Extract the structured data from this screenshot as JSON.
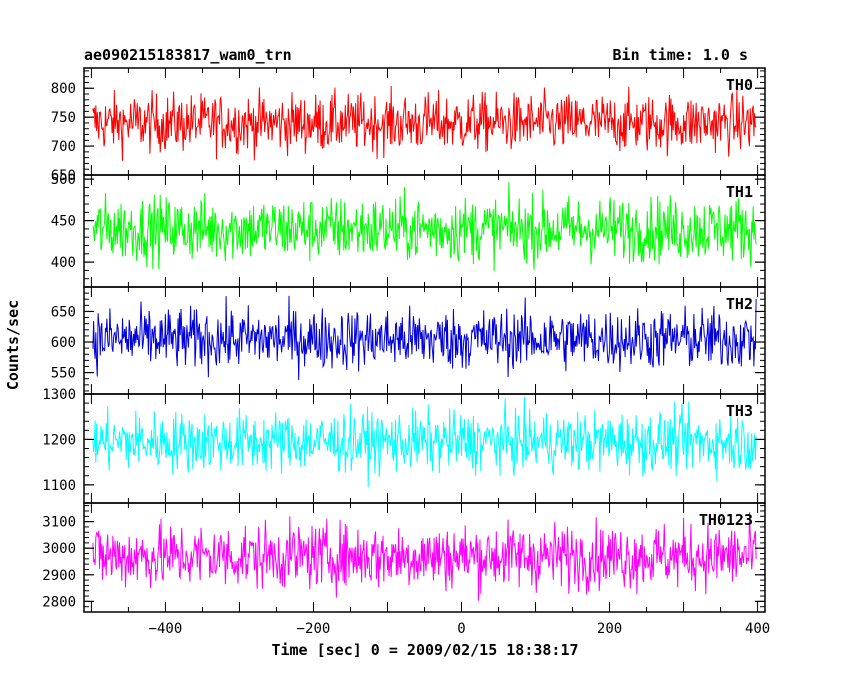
{
  "header": {
    "title_left": "ae090215183817_wam0_trn",
    "title_right": "Bin time: 1.0 s"
  },
  "axes": {
    "ylabel": "Counts/sec",
    "xlabel": "Time [sec] 0 = 2009/02/15 18:38:17"
  },
  "chart_data": {
    "type": "line",
    "xlim": [
      -510,
      410
    ],
    "x_ticks": [
      -400,
      -200,
      0,
      200,
      400
    ],
    "x_step": 1.0,
    "x_range": [
      -498,
      398
    ],
    "panels": [
      {
        "name": "TH0",
        "color": "#ff0000",
        "ylim": [
          650,
          835
        ],
        "y_ticks": [
          650,
          700,
          750,
          800
        ],
        "y_tick_labels": [
          "650",
          "700",
          "750",
          "800"
        ],
        "mean": 740,
        "amplitude": 45
      },
      {
        "name": "TH1",
        "color": "#00ff00",
        "ylim": [
          370,
          505
        ],
        "y_ticks": [
          400,
          450,
          500
        ],
        "y_tick_labels": [
          "400",
          "450",
          "500"
        ],
        "mean": 440,
        "amplitude": 35
      },
      {
        "name": "TH2",
        "color": "#0000dd",
        "ylim": [
          515,
          690
        ],
        "y_ticks": [
          550,
          600,
          650
        ],
        "y_tick_labels": [
          "550",
          "600",
          "650"
        ],
        "mean": 605,
        "amplitude": 45
      },
      {
        "name": "TH3",
        "color": "#00ffff",
        "ylim": [
          1060,
          1300
        ],
        "y_ticks": [
          1100,
          1200,
          1300
        ],
        "y_tick_labels": [
          "1100",
          "1200",
          "1300"
        ],
        "mean": 1195,
        "amplitude": 60
      },
      {
        "name": "TH0123",
        "color": "#ff00ff",
        "ylim": [
          2760,
          3170
        ],
        "y_ticks": [
          2800,
          2900,
          3000,
          3100
        ],
        "y_tick_labels": [
          "2800",
          "2900",
          "3000",
          "3100"
        ],
        "mean": 2970,
        "amplitude": 110
      }
    ]
  }
}
